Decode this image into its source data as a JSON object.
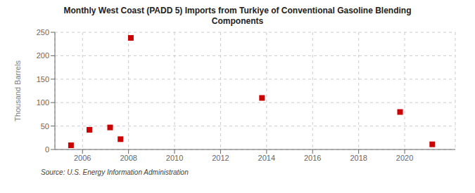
{
  "chart_data": {
    "type": "scatter",
    "title": "Monthly West Coast (PADD 5) Imports from Turkiye of Conventional Gasoline Blending\nComponents",
    "ylabel": "Thousand Barrels",
    "source": "Source: U.S. Energy Information Administration",
    "x": [
      2005.5,
      2006.3,
      2007.2,
      2007.65,
      2008.1,
      2013.8,
      2019.8,
      2021.2
    ],
    "values": [
      9,
      42,
      47,
      22,
      238,
      110,
      80,
      11
    ],
    "color": "#cc0000",
    "marker": "square",
    "xlim": [
      2004.8,
      2022.2
    ],
    "ylim": [
      0,
      250
    ],
    "xticks": [
      2006,
      2008,
      2010,
      2012,
      2014,
      2016,
      2018,
      2020
    ],
    "yticks": [
      0,
      50,
      100,
      150,
      200,
      250
    ],
    "grid": true
  }
}
